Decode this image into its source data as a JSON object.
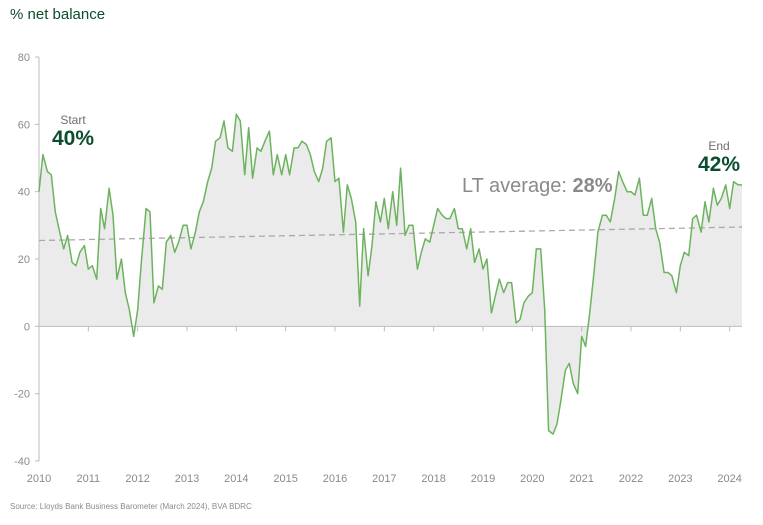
{
  "chart_data": {
    "type": "area",
    "title": "",
    "ylabel": "% net balance",
    "xlabel": "",
    "ylim": [
      -40,
      80
    ],
    "xlim": [
      2010,
      2024.25
    ],
    "yticks": [
      80,
      60,
      40,
      20,
      0,
      -20,
      -40
    ],
    "ytick_labels": [
      "80",
      "60",
      "40",
      "20",
      "0",
      "-20",
      "-40"
    ],
    "xticks": [
      2010,
      2011,
      2012,
      2013,
      2014,
      2015,
      2016,
      2017,
      2018,
      2019,
      2020,
      2021,
      2022,
      2023,
      2024
    ],
    "xtick_labels": [
      "2010",
      "2011",
      "2012",
      "2013",
      "2014",
      "2015",
      "2016",
      "2017",
      "2018",
      "2019",
      "2020",
      "2021",
      "2022",
      "2023",
      "2024"
    ],
    "series": [
      {
        "name": "% net balance",
        "color": "#6cb35e",
        "fill": "#ebebeb",
        "points": [
          [
            2010.0,
            40
          ],
          [
            2010.08,
            51
          ],
          [
            2010.17,
            46
          ],
          [
            2010.25,
            45
          ],
          [
            2010.33,
            34
          ],
          [
            2010.42,
            28
          ],
          [
            2010.5,
            23
          ],
          [
            2010.58,
            27
          ],
          [
            2010.67,
            19
          ],
          [
            2010.75,
            18
          ],
          [
            2010.83,
            22
          ],
          [
            2010.92,
            24
          ],
          [
            2011.0,
            17
          ],
          [
            2011.08,
            18
          ],
          [
            2011.17,
            14
          ],
          [
            2011.25,
            35
          ],
          [
            2011.33,
            29
          ],
          [
            2011.42,
            41
          ],
          [
            2011.5,
            33
          ],
          [
            2011.58,
            14
          ],
          [
            2011.67,
            20
          ],
          [
            2011.75,
            10
          ],
          [
            2011.83,
            5
          ],
          [
            2011.92,
            -3
          ],
          [
            2012.0,
            5
          ],
          [
            2012.08,
            20
          ],
          [
            2012.17,
            35
          ],
          [
            2012.25,
            34
          ],
          [
            2012.33,
            7
          ],
          [
            2012.42,
            12
          ],
          [
            2012.5,
            11
          ],
          [
            2012.58,
            25
          ],
          [
            2012.67,
            27
          ],
          [
            2012.75,
            22
          ],
          [
            2012.83,
            25
          ],
          [
            2012.92,
            30
          ],
          [
            2013.0,
            30
          ],
          [
            2013.08,
            23
          ],
          [
            2013.17,
            28
          ],
          [
            2013.25,
            34
          ],
          [
            2013.33,
            37
          ],
          [
            2013.42,
            43
          ],
          [
            2013.5,
            47
          ],
          [
            2013.58,
            55
          ],
          [
            2013.67,
            56
          ],
          [
            2013.75,
            61
          ],
          [
            2013.83,
            53
          ],
          [
            2013.92,
            52
          ],
          [
            2014.0,
            63
          ],
          [
            2014.08,
            61
          ],
          [
            2014.17,
            45
          ],
          [
            2014.25,
            59
          ],
          [
            2014.33,
            44
          ],
          [
            2014.42,
            53
          ],
          [
            2014.5,
            52
          ],
          [
            2014.58,
            55
          ],
          [
            2014.67,
            58
          ],
          [
            2014.75,
            45
          ],
          [
            2014.83,
            51
          ],
          [
            2014.92,
            45
          ],
          [
            2015.0,
            51
          ],
          [
            2015.08,
            45
          ],
          [
            2015.17,
            53
          ],
          [
            2015.25,
            53
          ],
          [
            2015.33,
            55
          ],
          [
            2015.42,
            54
          ],
          [
            2015.5,
            51
          ],
          [
            2015.58,
            46
          ],
          [
            2015.67,
            43
          ],
          [
            2015.75,
            47
          ],
          [
            2015.83,
            55
          ],
          [
            2015.92,
            56
          ],
          [
            2016.0,
            43
          ],
          [
            2016.08,
            44
          ],
          [
            2016.17,
            28
          ],
          [
            2016.25,
            42
          ],
          [
            2016.33,
            38
          ],
          [
            2016.42,
            31
          ],
          [
            2016.5,
            6
          ],
          [
            2016.58,
            29
          ],
          [
            2016.67,
            15
          ],
          [
            2016.75,
            24
          ],
          [
            2016.83,
            37
          ],
          [
            2016.92,
            31
          ],
          [
            2017.0,
            38
          ],
          [
            2017.08,
            29
          ],
          [
            2017.17,
            40
          ],
          [
            2017.25,
            30
          ],
          [
            2017.33,
            47
          ],
          [
            2017.42,
            27
          ],
          [
            2017.5,
            30
          ],
          [
            2017.58,
            30
          ],
          [
            2017.67,
            17
          ],
          [
            2017.75,
            22
          ],
          [
            2017.83,
            26
          ],
          [
            2017.92,
            25
          ],
          [
            2018.0,
            30
          ],
          [
            2018.08,
            35
          ],
          [
            2018.17,
            33
          ],
          [
            2018.25,
            32
          ],
          [
            2018.33,
            32
          ],
          [
            2018.42,
            35
          ],
          [
            2018.5,
            29
          ],
          [
            2018.58,
            29
          ],
          [
            2018.67,
            23
          ],
          [
            2018.75,
            29
          ],
          [
            2018.83,
            19
          ],
          [
            2018.92,
            23
          ],
          [
            2019.0,
            17
          ],
          [
            2019.08,
            20
          ],
          [
            2019.17,
            4
          ],
          [
            2019.25,
            9
          ],
          [
            2019.33,
            14
          ],
          [
            2019.42,
            10
          ],
          [
            2019.5,
            13
          ],
          [
            2019.58,
            13
          ],
          [
            2019.67,
            1
          ],
          [
            2019.75,
            2
          ],
          [
            2019.83,
            7
          ],
          [
            2019.92,
            9
          ],
          [
            2020.0,
            10
          ],
          [
            2020.08,
            23
          ],
          [
            2020.17,
            23
          ],
          [
            2020.25,
            5
          ],
          [
            2020.33,
            -31
          ],
          [
            2020.42,
            -32
          ],
          [
            2020.5,
            -29
          ],
          [
            2020.58,
            -22
          ],
          [
            2020.67,
            -13
          ],
          [
            2020.75,
            -11
          ],
          [
            2020.83,
            -17
          ],
          [
            2020.92,
            -20
          ],
          [
            2021.0,
            -3
          ],
          [
            2021.08,
            -6
          ],
          [
            2021.17,
            5
          ],
          [
            2021.25,
            16
          ],
          [
            2021.33,
            28
          ],
          [
            2021.42,
            33
          ],
          [
            2021.5,
            33
          ],
          [
            2021.58,
            31
          ],
          [
            2021.67,
            38
          ],
          [
            2021.75,
            46
          ],
          [
            2021.83,
            43
          ],
          [
            2021.92,
            40
          ],
          [
            2022.0,
            40
          ],
          [
            2022.08,
            39
          ],
          [
            2022.17,
            44
          ],
          [
            2022.25,
            33
          ],
          [
            2022.33,
            33
          ],
          [
            2022.42,
            38
          ],
          [
            2022.5,
            29
          ],
          [
            2022.58,
            25
          ],
          [
            2022.67,
            16
          ],
          [
            2022.75,
            16
          ],
          [
            2022.83,
            15
          ],
          [
            2022.92,
            10
          ],
          [
            2023.0,
            18
          ],
          [
            2023.08,
            22
          ],
          [
            2023.17,
            21
          ],
          [
            2023.25,
            32
          ],
          [
            2023.33,
            33
          ],
          [
            2023.42,
            28
          ],
          [
            2023.5,
            37
          ],
          [
            2023.58,
            31
          ],
          [
            2023.67,
            41
          ],
          [
            2023.75,
            36
          ],
          [
            2023.83,
            38
          ],
          [
            2023.92,
            42
          ],
          [
            2024.0,
            35
          ],
          [
            2024.08,
            43
          ],
          [
            2024.17,
            42
          ],
          [
            2024.25,
            42
          ]
        ]
      },
      {
        "name": "LT average",
        "style": "dashed",
        "color": "#aaaaaa",
        "points": [
          [
            2010.0,
            25.5
          ],
          [
            2024.25,
            29.5
          ]
        ]
      }
    ],
    "annotations": {
      "start_label": "Start",
      "start_value": "40%",
      "end_label": "End",
      "end_value": "42%",
      "lt_prefix": "LT average: ",
      "lt_value": "28%"
    },
    "source": "Source: Lloyds Bank Business Barometer (March 2024), BVA BDRC"
  }
}
